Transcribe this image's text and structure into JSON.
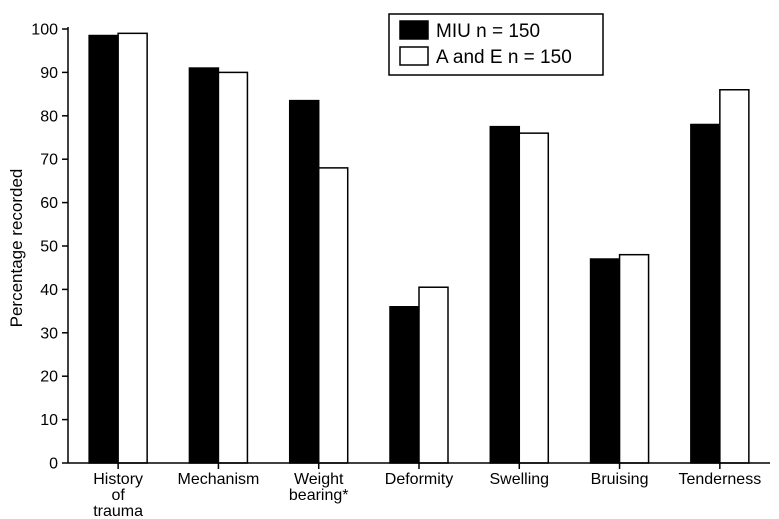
{
  "chart_data": {
    "type": "bar",
    "title": "",
    "xlabel": "",
    "ylabel": "Percentage recorded",
    "ylim": [
      0,
      100
    ],
    "yticks": [
      0,
      10,
      20,
      30,
      40,
      50,
      60,
      70,
      80,
      90,
      100
    ],
    "grid": false,
    "legend_position": "top-right",
    "categories": [
      [
        "History",
        "of",
        "trauma"
      ],
      [
        "Mechanism"
      ],
      [
        "Weight",
        "bearing*"
      ],
      [
        "Deformity"
      ],
      [
        "Swelling"
      ],
      [
        "Bruising"
      ],
      [
        "Tenderness"
      ]
    ],
    "series": [
      {
        "name": "MIU n = 150",
        "color": "#000000",
        "values": [
          98.5,
          91,
          83.5,
          36,
          77.5,
          47,
          78
        ]
      },
      {
        "name": "A and E n = 150",
        "color": "#ffffff",
        "values": [
          99,
          90,
          68,
          40.5,
          76,
          48,
          86
        ]
      }
    ]
  }
}
